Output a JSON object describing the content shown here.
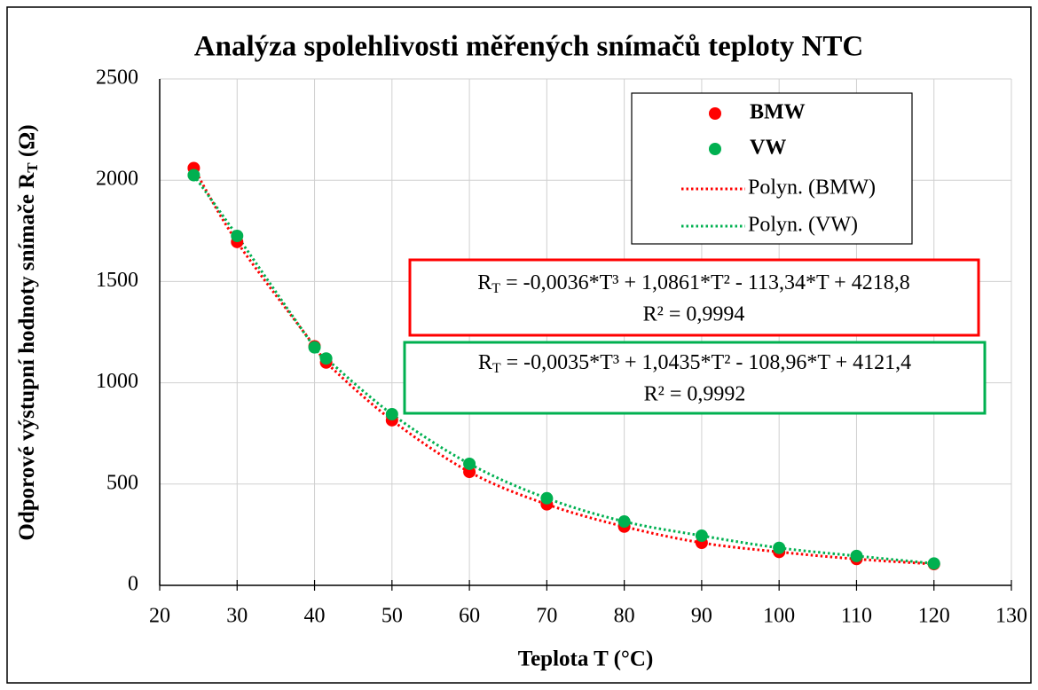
{
  "chart_data": {
    "type": "scatter",
    "title": "Analýza spolehlivosti měřených snímačů teploty NTC",
    "xlabel": "Teplota T (°C)",
    "ylabel": {
      "text": "Odporové výstupní hodnoty snímače R",
      "sub": "T",
      "tail": " (Ω)"
    },
    "xlim": [
      20,
      130
    ],
    "xticks": [
      20,
      30,
      40,
      50,
      60,
      70,
      80,
      90,
      100,
      110,
      120,
      130
    ],
    "ylim": [
      0,
      2500
    ],
    "yticks": [
      0,
      500,
      1000,
      1500,
      2000,
      2500
    ],
    "grid": true,
    "legend": "top-right",
    "series": [
      {
        "name": "BMW",
        "color": "#ff0000",
        "x": [
          24.4,
          30,
          40,
          41.5,
          50,
          60,
          70,
          80,
          90,
          100,
          110,
          120
        ],
        "values": [
          2060,
          1695,
          1180,
          1100,
          815,
          560,
          400,
          290,
          210,
          165,
          130,
          105
        ]
      },
      {
        "name": "VW",
        "color": "#00b050",
        "x": [
          24.4,
          30,
          40,
          41.5,
          50,
          60,
          70,
          80,
          90,
          100,
          110,
          120
        ],
        "values": [
          2025,
          1725,
          1175,
          1120,
          845,
          600,
          430,
          315,
          245,
          185,
          145,
          108
        ]
      }
    ],
    "trendlines": [
      {
        "name": "Polyn. (BMW)",
        "color": "#ff0000",
        "equation": {
          "lhs": "R",
          "sub": "T",
          "rhs": " = -0,0036*T³ + 1,0861*T² - 113,34*T + 4218,8"
        },
        "r2": "R² = 0,9994"
      },
      {
        "name": "Polyn. (VW)",
        "color": "#00b050",
        "equation": {
          "lhs": "R",
          "sub": "T",
          "rhs": " = -0,0035*T³ + 1,0435*T² - 108,96*T + 4121,4"
        },
        "r2": "R² = 0,9992"
      }
    ]
  }
}
